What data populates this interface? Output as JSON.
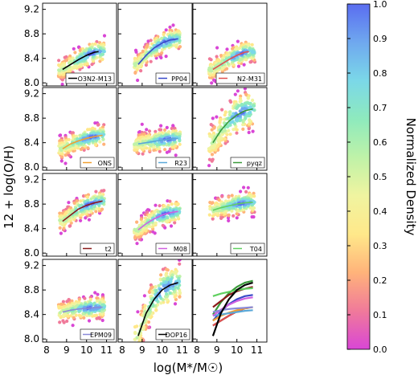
{
  "figure": {
    "ylabel": "12 + log(O/H)",
    "xlabel": "log(M*/M☉)",
    "colorbar_label": "Normalized Density",
    "colorbar_ticks": [
      "0.0",
      "0.1",
      "0.2",
      "0.3",
      "0.4",
      "0.5",
      "0.6",
      "0.7",
      "0.8",
      "0.9",
      "1.0"
    ],
    "colormap": [
      "#d946d6",
      "#f07a9a",
      "#ffb37a",
      "#ffe88a",
      "#f0f4a0",
      "#bff2a8",
      "#8eeabd",
      "#7bd8e8",
      "#6fa8ef",
      "#5a6df0"
    ]
  },
  "chart_data": {
    "type": "scatter",
    "xlim": [
      7.8,
      11.5
    ],
    "ylim": [
      7.95,
      9.3
    ],
    "x_ticks": [
      "8",
      "9",
      "10",
      "11"
    ],
    "y_ticks": [
      "8.0",
      "8.4",
      "8.8",
      "9.2"
    ],
    "panels": [
      {
        "label": "O3N2-M13",
        "color": "#000000",
        "x": [
          8.8,
          9.2,
          9.6,
          10.0,
          10.4,
          10.6
        ],
        "y": [
          8.22,
          8.3,
          8.38,
          8.45,
          8.5,
          8.51
        ]
      },
      {
        "label": "PP04",
        "color": "#3848c8",
        "x": [
          8.8,
          9.2,
          9.6,
          10.0,
          10.4,
          10.8
        ],
        "y": [
          8.3,
          8.45,
          8.57,
          8.65,
          8.7,
          8.72
        ]
      },
      {
        "label": "N2-M31",
        "color": "#e05050",
        "x": [
          8.8,
          9.2,
          9.6,
          10.0,
          10.4,
          10.6
        ],
        "y": [
          8.22,
          8.3,
          8.38,
          8.45,
          8.5,
          8.51
        ]
      },
      {
        "label": "ONS",
        "color": "#f0a030",
        "x": [
          8.8,
          9.2,
          9.6,
          10.0,
          10.4,
          10.8
        ],
        "y": [
          8.3,
          8.38,
          8.43,
          8.47,
          8.5,
          8.52
        ]
      },
      {
        "label": "R23",
        "color": "#5aa8d8",
        "x": [
          8.8,
          9.2,
          9.6,
          10.0,
          10.4,
          10.8
        ],
        "y": [
          8.38,
          8.4,
          8.42,
          8.44,
          8.46,
          8.47
        ]
      },
      {
        "label": "pyqz",
        "color": "#3a9a3a",
        "x": [
          8.8,
          9.2,
          9.6,
          10.0,
          10.4,
          10.8
        ],
        "y": [
          8.4,
          8.6,
          8.75,
          8.85,
          8.92,
          8.95
        ]
      },
      {
        "label": "t2",
        "color": "#8b1a1a",
        "x": [
          8.8,
          9.2,
          9.6,
          10.0,
          10.4,
          10.8
        ],
        "y": [
          8.52,
          8.62,
          8.72,
          8.78,
          8.82,
          8.85
        ]
      },
      {
        "label": "M08",
        "color": "#d060e0",
        "x": [
          8.8,
          9.2,
          9.6,
          10.0,
          10.4,
          10.8
        ],
        "y": [
          8.38,
          8.48,
          8.56,
          8.62,
          8.66,
          8.68
        ]
      },
      {
        "label": "T04",
        "color": "#60d060",
        "x": [
          8.8,
          9.2,
          9.6,
          10.0,
          10.4,
          10.8
        ],
        "y": [
          8.7,
          8.74,
          8.77,
          8.8,
          8.82,
          8.83
        ]
      },
      {
        "label": "EPM09",
        "color": "#8a8ad8",
        "x": [
          8.8,
          9.2,
          9.6,
          10.0,
          10.4,
          10.8
        ],
        "y": [
          8.44,
          8.47,
          8.49,
          8.5,
          8.51,
          8.52
        ]
      },
      {
        "label": "DOP16",
        "color": "#000000",
        "x": [
          8.8,
          9.2,
          9.6,
          10.0,
          10.4,
          10.8
        ],
        "y": [
          8.05,
          8.42,
          8.65,
          8.8,
          8.88,
          8.92
        ]
      },
      {
        "label": "",
        "color": "",
        "x": [],
        "y": []
      }
    ],
    "density_note_visible": false
  }
}
